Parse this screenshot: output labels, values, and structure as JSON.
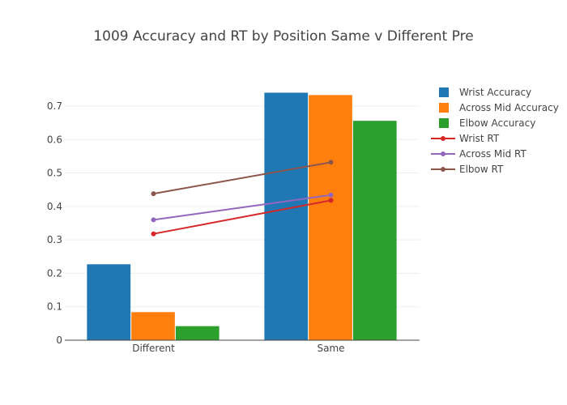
{
  "chart_data": {
    "type": "bar",
    "title": "1009 Accuracy and RT by Position Same v Different Pre",
    "xlabel": "",
    "ylabel": "",
    "categories": [
      "Different",
      "Same"
    ],
    "ylim": [
      0,
      0.775
    ],
    "yticks": [
      0,
      0.1,
      0.2,
      0.3,
      0.4,
      0.5,
      0.6,
      0.7
    ],
    "ytick_labels": [
      "0",
      "0.1",
      "0.2",
      "0.3",
      "0.4",
      "0.5",
      "0.6",
      "0.7"
    ],
    "grid": true,
    "legend_position": "right",
    "series": [
      {
        "name": "Wrist Accuracy",
        "type": "bar",
        "color": "#1f77b4",
        "values": [
          0.227,
          0.74
        ]
      },
      {
        "name": "Across Mid Accuracy",
        "type": "bar",
        "color": "#ff7f0e",
        "values": [
          0.084,
          0.733
        ]
      },
      {
        "name": "Elbow Accuracy",
        "type": "bar",
        "color": "#2ca02c",
        "values": [
          0.042,
          0.656
        ]
      },
      {
        "name": "Wrist RT",
        "type": "line",
        "color": "#d62728",
        "values": [
          0.318,
          0.418
        ]
      },
      {
        "name": "Across Mid RT",
        "type": "line",
        "color": "#9467bd",
        "values": [
          0.36,
          0.434
        ]
      },
      {
        "name": "Elbow RT",
        "type": "line",
        "color": "#8c564b",
        "values": [
          0.438,
          0.532
        ]
      }
    ]
  }
}
